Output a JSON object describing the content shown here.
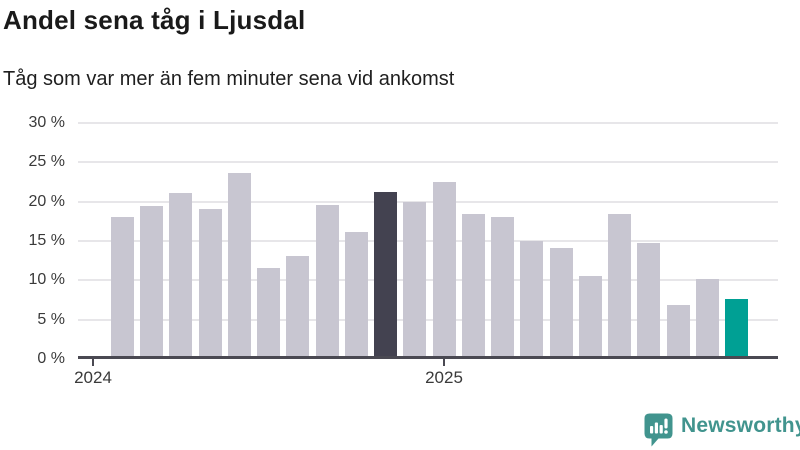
{
  "header": {
    "title": "Andel sena tåg i Ljusdal",
    "subtitle": "Tåg som var mer än fem minuter sena vid ankomst"
  },
  "chart_data": {
    "type": "bar",
    "title": "Andel sena tåg i Ljusdal",
    "subtitle": "Tåg som var mer än fem minuter sena vid ankomst",
    "unit": "%",
    "categories": [
      "2024-02",
      "2024-03",
      "2024-04",
      "2024-05",
      "2024-06",
      "2024-07",
      "2024-08",
      "2024-09",
      "2024-10",
      "2024-11",
      "2024-12",
      "2025-01",
      "2025-02",
      "2025-03",
      "2025-04",
      "2025-05",
      "2025-06",
      "2025-07",
      "2025-08",
      "2025-09",
      "2025-10",
      "2025-11"
    ],
    "values": [
      18.1,
      19.5,
      21.1,
      19.1,
      23.6,
      11.6,
      13.1,
      19.6,
      16.1,
      21.2,
      20.0,
      22.5,
      18.4,
      18.1,
      15.0,
      14.1,
      10.5,
      18.4,
      14.7,
      6.9,
      10.2,
      7.6
    ],
    "highlight": {
      "dark_index": 9,
      "accent_index": 21
    },
    "ylim": [
      0,
      30
    ],
    "yticks": [
      0,
      5,
      10,
      15,
      20,
      25,
      30
    ],
    "ytick_labels": [
      "0 %",
      "5 %",
      "10 %",
      "15 %",
      "20 %",
      "25 %",
      "30 %"
    ],
    "xtick_labels": [
      "2024",
      "2025"
    ],
    "grid": "horizontal",
    "legend": "none",
    "colors": {
      "bar": "#c8c6d1",
      "highlight_dark": "#434250",
      "highlight_accent": "#00a094",
      "axis": "#4a4952",
      "gridline": "#e7e6e9"
    }
  },
  "footer": {
    "brand": "Newsworthy",
    "brand_color": "#41948e"
  }
}
